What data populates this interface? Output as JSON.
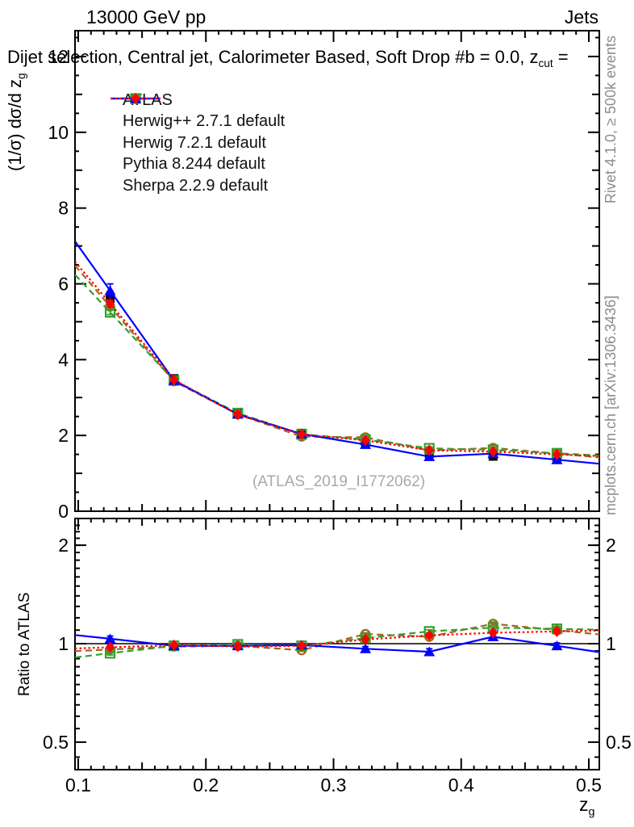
{
  "chart_data": {
    "type": "line",
    "header_left": "13000 GeV pp",
    "header_right": "Jets",
    "title": {
      "main": "Dijet selection, Central jet, Calorimeter Based, Soft Drop #b = 0.0, z",
      "sub": "cut",
      "tail": " ="
    },
    "watermark": "(ATLAS_2019_I1772062)",
    "notes": {
      "top": "Rivet 4.1.0, ≥ 500k events",
      "bottom": "mcplots.cern.ch [arXiv:1306.3436]"
    },
    "xlabel": {
      "main": "z",
      "sub": "g"
    },
    "ylabel": {
      "main": "(1/σ) dσ/d z",
      "sub": "g"
    },
    "ratio_ylabel": "Ratio to ATLAS",
    "x_bin_centers": [
      0.125,
      0.175,
      0.225,
      0.275,
      0.325,
      0.375,
      0.425,
      0.475
    ],
    "x_bin_width": 0.05,
    "xlim": [
      0.0975,
      0.5082
    ],
    "x_ticks": {
      "major": [
        0.1,
        0.2,
        0.3,
        0.4,
        0.5
      ],
      "labels": [
        "0.1",
        "0.2",
        "0.3",
        "0.4",
        "0.5"
      ],
      "medium_step": 0.05,
      "minor_step": 0.01
    },
    "main_panel": {
      "ylim": [
        0,
        12.68
      ],
      "yticks_major": [
        0,
        2,
        4,
        6,
        8,
        10,
        12
      ],
      "ytick_labels": [
        "0",
        "2",
        "4",
        "6",
        "8",
        "10",
        "12"
      ],
      "minor_step": 0.5,
      "grid": false
    },
    "ratio_panel": {
      "scale": "log",
      "ylim": [
        0.412,
        2.41
      ],
      "yticks_major": [
        0.5,
        1,
        2
      ],
      "ytick_labels": [
        "0.5",
        "1",
        "2"
      ],
      "reference_line": 1
    },
    "legend_position": "top-left-inside",
    "series": [
      {
        "name": "ATLAS",
        "color": "#000000",
        "marker": "square-filled",
        "line": "none",
        "values": [
          5.62,
          3.5,
          2.6,
          2.06,
          1.82,
          1.52,
          1.45,
          1.38
        ],
        "yerr": [
          0.15,
          0.05,
          0.04,
          0.04,
          0.04,
          0.04,
          0.04,
          0.05
        ],
        "ratio": null,
        "ratio_err": null
      },
      {
        "name": "Herwig++ 2.7.1 default",
        "color": "#a5641e",
        "marker": "circle-open",
        "line": "dashed",
        "values": [
          5.4,
          3.43,
          2.56,
          1.97,
          1.95,
          1.6,
          1.67,
          1.52
        ],
        "yerr": [
          0.06,
          0.03,
          0.02,
          0.02,
          0.02,
          0.02,
          0.02,
          0.02
        ],
        "ratio": [
          0.96,
          0.98,
          0.985,
          0.955,
          1.07,
          1.05,
          1.15,
          1.1
        ],
        "ratio_err": [
          0.012,
          0.008,
          0.008,
          0.008,
          0.01,
          0.012,
          0.015,
          0.015
        ]
      },
      {
        "name": "Herwig 7.2.1 default",
        "color": "#33a02c",
        "marker": "square-open",
        "line": "dashed",
        "values": [
          5.25,
          3.45,
          2.59,
          2.03,
          1.89,
          1.66,
          1.62,
          1.53
        ],
        "yerr": [
          0.06,
          0.03,
          0.02,
          0.02,
          0.02,
          0.02,
          0.02,
          0.02
        ],
        "ratio": [
          0.935,
          0.985,
          0.995,
          0.985,
          1.04,
          1.09,
          1.12,
          1.11
        ],
        "ratio_err": [
          0.012,
          0.008,
          0.008,
          0.008,
          0.01,
          0.012,
          0.015,
          0.015
        ]
      },
      {
        "name": "Pythia 8.244 default",
        "color": "#0000ff",
        "marker": "triangle-filled",
        "line": "solid",
        "values": [
          5.82,
          3.45,
          2.56,
          2.04,
          1.76,
          1.44,
          1.52,
          1.36
        ],
        "yerr": [
          0.18,
          0.05,
          0.04,
          0.03,
          0.03,
          0.03,
          0.04,
          0.04
        ],
        "ratio": [
          1.035,
          0.985,
          0.985,
          0.99,
          0.965,
          0.945,
          1.05,
          0.985
        ],
        "ratio_err": [
          0.02,
          0.012,
          0.012,
          0.012,
          0.015,
          0.02,
          0.02,
          0.02
        ]
      },
      {
        "name": "Sherpa 2.2.9 default",
        "color": "#ff0000",
        "marker": "diamond-filled",
        "line": "dotted",
        "values": [
          5.48,
          3.47,
          2.55,
          2.03,
          1.87,
          1.61,
          1.57,
          1.5
        ],
        "yerr": [
          0.08,
          0.03,
          0.02,
          0.02,
          0.02,
          0.02,
          0.02,
          0.03
        ],
        "ratio": [
          0.975,
          0.99,
          0.98,
          0.985,
          1.03,
          1.06,
          1.08,
          1.09
        ],
        "ratio_err": [
          0.015,
          0.01,
          0.01,
          0.01,
          0.012,
          0.015,
          0.015,
          0.018
        ]
      }
    ]
  }
}
